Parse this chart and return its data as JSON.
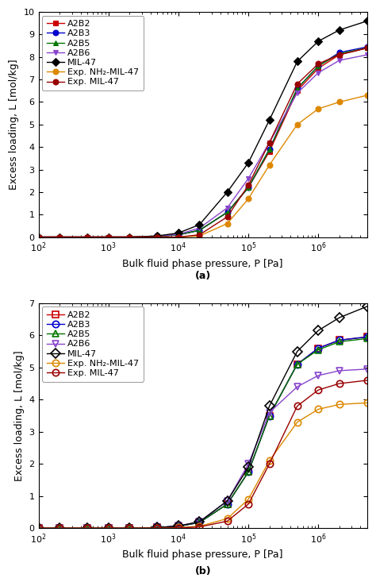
{
  "panel_a": {
    "title": "(a)",
    "ylim": [
      0,
      10
    ],
    "yticks": [
      0,
      1,
      2,
      3,
      4,
      5,
      6,
      7,
      8,
      9,
      10
    ],
    "xlim": [
      100,
      5000000
    ],
    "ylabel": "Excess loading, L [mol/kg]",
    "xlabel": "Bulk fluid phase pressure, P [Pa]",
    "series": [
      {
        "label": "A2B2",
        "color": "#cc0000",
        "marker": "s",
        "filled": true,
        "markersize": 5,
        "x": [
          100,
          200,
          500,
          1000,
          2000,
          5000,
          10000,
          20000,
          50000,
          100000,
          200000,
          500000,
          1000000,
          2000000,
          5000000
        ],
        "y": [
          0.0,
          0.0,
          0.0,
          0.0,
          0.0,
          0.03,
          0.1,
          0.3,
          1.1,
          2.2,
          3.8,
          6.5,
          7.5,
          8.1,
          8.4
        ]
      },
      {
        "label": "A2B3",
        "color": "#0000cc",
        "marker": "o",
        "filled": true,
        "markersize": 5,
        "x": [
          100,
          200,
          500,
          1000,
          2000,
          5000,
          10000,
          20000,
          50000,
          100000,
          200000,
          500000,
          1000000,
          2000000,
          5000000
        ],
        "y": [
          0.0,
          0.0,
          0.0,
          0.0,
          0.0,
          0.03,
          0.1,
          0.3,
          1.1,
          2.2,
          3.9,
          6.6,
          7.6,
          8.2,
          8.45
        ]
      },
      {
        "label": "A2B5",
        "color": "#007700",
        "marker": "^",
        "filled": true,
        "markersize": 5,
        "x": [
          100,
          200,
          500,
          1000,
          2000,
          5000,
          10000,
          20000,
          50000,
          100000,
          200000,
          500000,
          1000000,
          2000000,
          5000000
        ],
        "y": [
          0.0,
          0.0,
          0.0,
          0.0,
          0.0,
          0.03,
          0.1,
          0.3,
          1.1,
          2.2,
          3.9,
          6.6,
          7.6,
          8.15,
          8.4
        ]
      },
      {
        "label": "A2B6",
        "color": "#8844cc",
        "marker": "v",
        "filled": true,
        "markersize": 5,
        "x": [
          100,
          200,
          500,
          1000,
          2000,
          5000,
          10000,
          20000,
          50000,
          100000,
          200000,
          500000,
          1000000,
          2000000,
          5000000
        ],
        "y": [
          0.0,
          0.0,
          0.0,
          0.0,
          0.0,
          0.04,
          0.12,
          0.4,
          1.3,
          2.6,
          4.2,
          6.4,
          7.3,
          7.85,
          8.1
        ]
      },
      {
        "label": "MIL-47",
        "color": "#000000",
        "marker": "D",
        "filled": true,
        "markersize": 5,
        "x": [
          100,
          200,
          500,
          1000,
          2000,
          5000,
          10000,
          20000,
          50000,
          100000,
          200000,
          500000,
          1000000,
          2000000,
          5000000
        ],
        "y": [
          0.0,
          0.0,
          0.0,
          0.0,
          0.0,
          0.05,
          0.18,
          0.55,
          2.0,
          3.3,
          5.2,
          7.8,
          8.7,
          9.2,
          9.6
        ]
      },
      {
        "label": "Exp. NH₂-MIL-47",
        "color": "#dd8800",
        "marker": "o",
        "filled": true,
        "markersize": 5,
        "x": [
          100,
          200,
          500,
          1000,
          2000,
          5000,
          10000,
          20000,
          50000,
          100000,
          200000,
          500000,
          1000000,
          2000000,
          5000000
        ],
        "y": [
          0.0,
          0.0,
          0.0,
          0.0,
          0.0,
          0.0,
          0.0,
          0.05,
          0.6,
          1.7,
          3.2,
          5.0,
          5.7,
          6.0,
          6.3
        ]
      },
      {
        "label": "Exp. MIL-47",
        "color": "#990000",
        "marker": "o",
        "filled": true,
        "markersize": 5,
        "x": [
          100,
          200,
          500,
          1000,
          2000,
          5000,
          10000,
          20000,
          50000,
          100000,
          200000,
          500000,
          1000000,
          2000000,
          5000000
        ],
        "y": [
          0.0,
          0.0,
          0.0,
          0.0,
          0.0,
          0.0,
          0.0,
          0.1,
          0.9,
          2.3,
          4.2,
          6.8,
          7.7,
          8.1,
          8.4
        ]
      }
    ]
  },
  "panel_b": {
    "title": "(b)",
    "ylim": [
      0,
      7
    ],
    "yticks": [
      0,
      1,
      2,
      3,
      4,
      5,
      6,
      7
    ],
    "xlim": [
      100,
      5000000
    ],
    "ylabel": "Excess loading, L [mol/kg]",
    "xlabel": "Bulk fluid phase pressure, P [Pa]",
    "series": [
      {
        "label": "A2B2",
        "color": "#cc0000",
        "marker": "s",
        "filled": false,
        "markersize": 6,
        "x": [
          100,
          200,
          500,
          1000,
          2000,
          5000,
          10000,
          20000,
          50000,
          100000,
          200000,
          500000,
          1000000,
          2000000,
          5000000
        ],
        "y": [
          0.0,
          0.0,
          0.0,
          0.0,
          0.0,
          0.02,
          0.06,
          0.18,
          0.75,
          1.75,
          3.5,
          5.1,
          5.6,
          5.85,
          5.95
        ]
      },
      {
        "label": "A2B3",
        "color": "#0000cc",
        "marker": "o",
        "filled": false,
        "markersize": 6,
        "x": [
          100,
          200,
          500,
          1000,
          2000,
          5000,
          10000,
          20000,
          50000,
          100000,
          200000,
          500000,
          1000000,
          2000000,
          5000000
        ],
        "y": [
          0.0,
          0.0,
          0.0,
          0.0,
          0.0,
          0.02,
          0.06,
          0.18,
          0.75,
          1.75,
          3.5,
          5.1,
          5.6,
          5.85,
          5.95
        ]
      },
      {
        "label": "A2B5",
        "color": "#007700",
        "marker": "^",
        "filled": false,
        "markersize": 6,
        "x": [
          100,
          200,
          500,
          1000,
          2000,
          5000,
          10000,
          20000,
          50000,
          100000,
          200000,
          500000,
          1000000,
          2000000,
          5000000
        ],
        "y": [
          0.0,
          0.0,
          0.0,
          0.0,
          0.0,
          0.02,
          0.06,
          0.18,
          0.75,
          1.75,
          3.5,
          5.1,
          5.55,
          5.8,
          5.9
        ]
      },
      {
        "label": "A2B6",
        "color": "#8844cc",
        "marker": "v",
        "filled": false,
        "markersize": 6,
        "x": [
          100,
          200,
          500,
          1000,
          2000,
          5000,
          10000,
          20000,
          50000,
          100000,
          200000,
          500000,
          1000000,
          2000000,
          5000000
        ],
        "y": [
          0.0,
          0.0,
          0.0,
          0.0,
          0.0,
          0.02,
          0.07,
          0.2,
          0.85,
          2.0,
          3.6,
          4.4,
          4.75,
          4.9,
          4.95
        ]
      },
      {
        "label": "MIL-47",
        "color": "#000000",
        "marker": "D",
        "filled": false,
        "markersize": 6,
        "x": [
          100,
          200,
          500,
          1000,
          2000,
          5000,
          10000,
          20000,
          50000,
          100000,
          200000,
          500000,
          1000000,
          2000000,
          5000000
        ],
        "y": [
          0.0,
          0.0,
          0.0,
          0.0,
          0.0,
          0.02,
          0.07,
          0.2,
          0.85,
          1.9,
          3.8,
          5.5,
          6.15,
          6.55,
          6.9
        ]
      },
      {
        "label": "Exp. NH₂-MIL-47",
        "color": "#dd8800",
        "marker": "o",
        "filled": false,
        "markersize": 6,
        "x": [
          100,
          200,
          500,
          1000,
          2000,
          5000,
          10000,
          20000,
          50000,
          100000,
          200000,
          500000,
          1000000,
          2000000,
          5000000
        ],
        "y": [
          0.0,
          0.0,
          0.0,
          0.0,
          0.0,
          0.0,
          0.02,
          0.06,
          0.3,
          0.9,
          2.1,
          3.3,
          3.7,
          3.85,
          3.9
        ]
      },
      {
        "label": "Exp. MIL-47",
        "color": "#990000",
        "marker": "o",
        "filled": false,
        "markersize": 6,
        "x": [
          100,
          200,
          500,
          1000,
          2000,
          5000,
          10000,
          20000,
          50000,
          100000,
          200000,
          500000,
          1000000,
          2000000,
          5000000
        ],
        "y": [
          0.0,
          0.0,
          0.0,
          0.0,
          0.0,
          0.0,
          0.01,
          0.04,
          0.22,
          0.75,
          2.0,
          3.8,
          4.3,
          4.5,
          4.6
        ]
      }
    ]
  },
  "background_color": "#ffffff",
  "legend_fontsize": 8,
  "axis_fontsize": 9,
  "tick_fontsize": 8,
  "label_fontsize": 9
}
